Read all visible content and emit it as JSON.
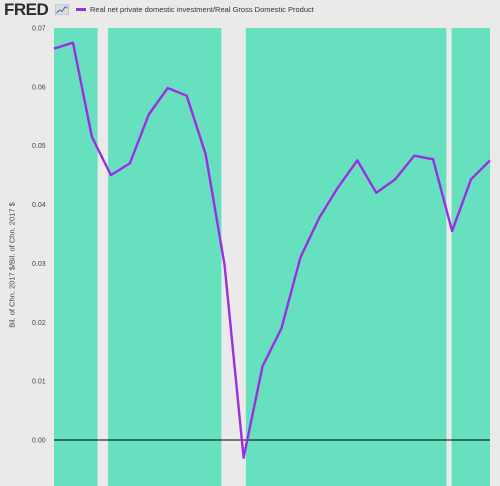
{
  "header": {
    "logo_text": "FRED",
    "logo_icon": "chart-line-icon"
  },
  "colors": {
    "background": "#eaeaea",
    "recession_shade": "#67e0c0",
    "series_line": "#9b2ee0",
    "zero_line": "#000000"
  },
  "chart_data": {
    "type": "line",
    "title": "",
    "xlabel": "",
    "ylabel": "Bil. of Chn. 2017 $/Bil. of Chn. 2017 $",
    "ylim": [
      -0.008,
      0.07
    ],
    "yticks": [
      "0.07",
      "0.06",
      "0.05",
      "0.04",
      "0.03",
      "0.02",
      "0.01",
      "0.00"
    ],
    "ytick_values": [
      0.07,
      0.06,
      0.05,
      0.04,
      0.03,
      0.02,
      0.01,
      0.0
    ],
    "grid": false,
    "legend": "top-left",
    "series": [
      {
        "name": "Real net private domestic investment/Real Gross Domestic Product",
        "values": [
          0.0665,
          0.0675,
          0.0515,
          0.045,
          0.047,
          0.0553,
          0.0598,
          0.0585,
          0.0485,
          0.0297,
          -0.003,
          0.0125,
          0.019,
          0.031,
          0.0378,
          0.043,
          0.0475,
          0.042,
          0.0443,
          0.0483,
          0.0477,
          0.0355,
          0.0443,
          0.0475
        ]
      }
    ],
    "shaded_bands": [
      {
        "start": 0.0,
        "end": 2.5
      },
      {
        "start": 3.1,
        "end": 9.6
      },
      {
        "start": 11.0,
        "end": 22.5
      },
      {
        "start": 22.8,
        "end": 25.0
      }
    ]
  }
}
